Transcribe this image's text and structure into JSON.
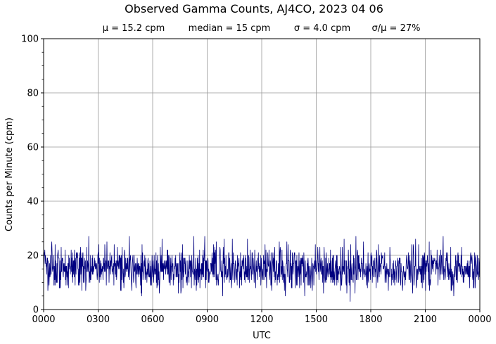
{
  "chart_data": {
    "type": "line",
    "title": "Observed Gamma Counts, AJ4CO, 2023 04 06",
    "stats": {
      "mean": "μ = 15.2 cpm",
      "median": "median = 15 cpm",
      "sigma": "σ = 4.0 cpm",
      "ratio": "σ/μ = 27%"
    },
    "xlabel": "UTC",
    "ylabel": "Counts per Minute (cpm)",
    "x_tick_labels": [
      "0000",
      "0300",
      "0600",
      "0900",
      "1200",
      "1500",
      "1800",
      "2100",
      "0000"
    ],
    "y_ticks": [
      0,
      20,
      40,
      60,
      80,
      100
    ],
    "y_tick_labels": [
      "0",
      "20",
      "40",
      "60",
      "80",
      "100"
    ],
    "xlim_minutes": [
      0,
      1440
    ],
    "ylim": [
      0,
      100
    ],
    "grid": true,
    "line_color": "#000080",
    "grid_color": "#999999",
    "series": [
      {
        "sampling": "1-minute counts",
        "summary": {
          "mean": 15.2,
          "median": 15,
          "std": 4.0,
          "min": 3,
          "max": 27
        }
      }
    ]
  }
}
